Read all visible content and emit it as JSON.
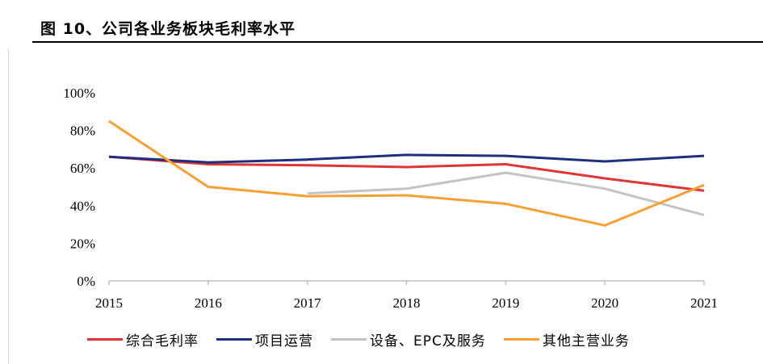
{
  "title": "图 10、公司各业务板块毛利率水平",
  "chart_data": {
    "type": "line",
    "title": "图 10、公司各业务板块毛利率水平",
    "xlabel": "",
    "ylabel": "",
    "categories": [
      "2015",
      "2016",
      "2017",
      "2018",
      "2019",
      "2020",
      "2021"
    ],
    "ylim": [
      0,
      100
    ],
    "yticks": [
      "0%",
      "20%",
      "40%",
      "60%",
      "80%",
      "100%"
    ],
    "grid": false,
    "legend_position": "bottom",
    "series": [
      {
        "name": "综合毛利率",
        "color": "#e03535",
        "values": [
          66,
          62,
          61.5,
          60.5,
          62,
          54.5,
          48
        ]
      },
      {
        "name": "项目运营",
        "color": "#1f2f7f",
        "values": [
          66,
          63,
          64.5,
          67,
          66.5,
          63.5,
          66.5
        ]
      },
      {
        "name": "设备、EPC及服务",
        "color": "#c4c4c4",
        "values": [
          null,
          null,
          46.5,
          49,
          57.5,
          49,
          35
        ]
      },
      {
        "name": "其他主营业务",
        "color": "#f7a034",
        "values": [
          85,
          50,
          45,
          45.5,
          41,
          29.5,
          51
        ]
      }
    ]
  }
}
